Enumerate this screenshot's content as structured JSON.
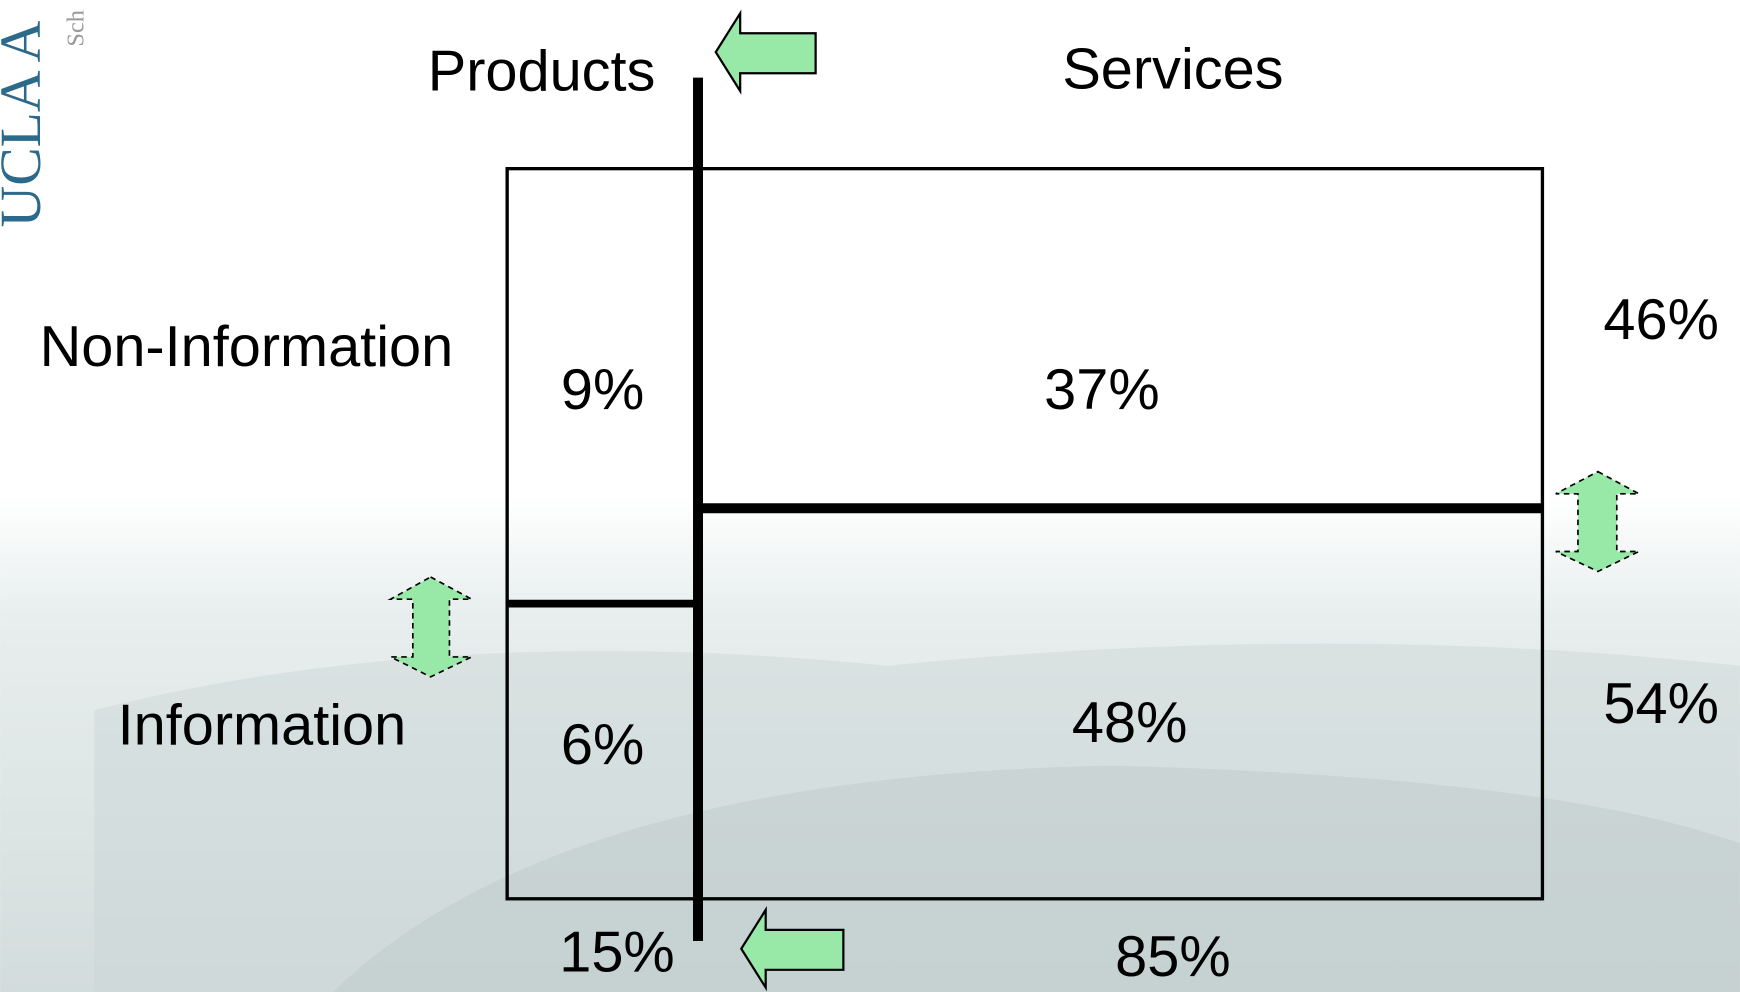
{
  "logo": {
    "name": "UCLA A",
    "subtitle": "Sch"
  },
  "columns": [
    "Products",
    "Services"
  ],
  "rows": [
    "Non-Information",
    "Information"
  ],
  "cells": [
    [
      "9%",
      "37%"
    ],
    [
      "6%",
      "48%"
    ]
  ],
  "row_totals": [
    "46%",
    "54%"
  ],
  "column_totals": [
    "15%",
    "85%"
  ]
}
